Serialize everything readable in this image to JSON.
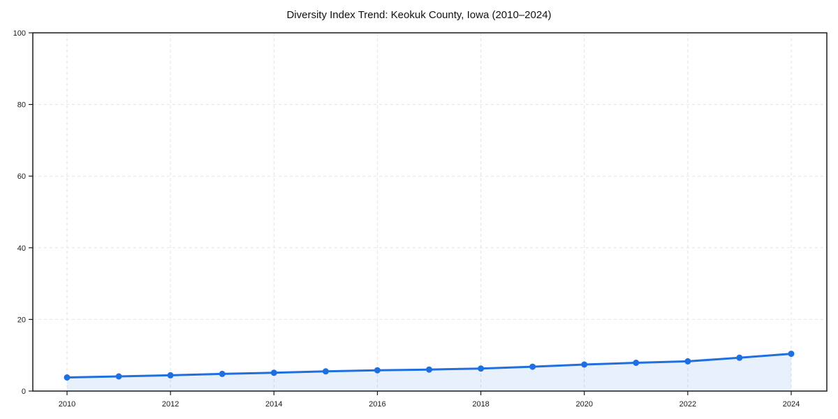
{
  "chart_data": {
    "type": "line",
    "title": "Diversity Index Trend: Keokuk County, Iowa (2010–2024)",
    "xlabel": "",
    "ylabel": "",
    "x": [
      2010,
      2011,
      2012,
      2013,
      2014,
      2015,
      2016,
      2017,
      2018,
      2019,
      2020,
      2021,
      2022,
      2023,
      2024
    ],
    "series": [
      {
        "name": "Diversity Index",
        "values": [
          3.8,
          4.1,
          4.4,
          4.8,
          5.1,
          5.5,
          5.8,
          6.0,
          6.3,
          6.8,
          7.4,
          7.9,
          8.3,
          9.3,
          10.4
        ]
      }
    ],
    "ylim": [
      0,
      100
    ],
    "yticks": [
      0,
      20,
      40,
      60,
      80,
      100
    ],
    "xticks": [
      2010,
      2012,
      2014,
      2016,
      2018,
      2020,
      2022,
      2024
    ],
    "grid": true,
    "legend": "none",
    "colors": {
      "line": "#1f6fe0",
      "marker": "#1f6fe0",
      "area_fill": "#1f6fe0",
      "grid": "#e2e2e2",
      "axis": "#1a1a1a",
      "tick_label": "#1a1a1a",
      "title": "#111111",
      "background": "#ffffff"
    },
    "area_fill_opacity": 0.1
  }
}
